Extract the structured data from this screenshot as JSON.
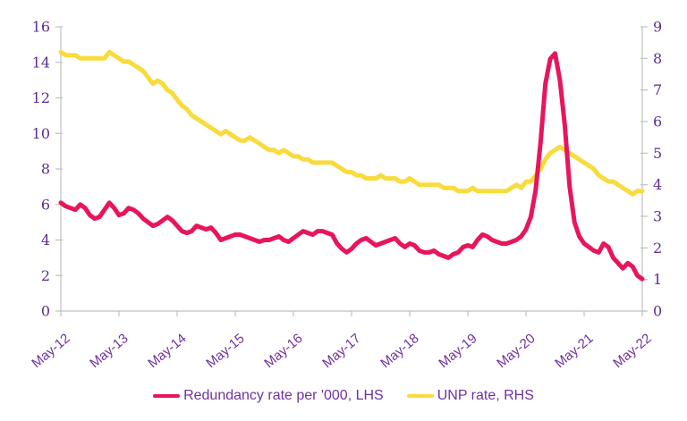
{
  "colors": {
    "redundancy_line": "#E8155E",
    "unp_line": "#F8DB3C",
    "axis_line": "#C0C0C0",
    "tick_number_text": "#5C2D91",
    "month_label_text": "#7030A0"
  },
  "chart_data": {
    "type": "line",
    "title": "",
    "grid": false,
    "legend_position": "bottom",
    "x_unit": "month",
    "x_start": "May-12",
    "x_end": "May-22",
    "n_points": 121,
    "x_tick_labels": [
      "May-12",
      "May-13",
      "May-14",
      "May-15",
      "May-16",
      "May-17",
      "May-18",
      "May-19",
      "May-20",
      "May-21",
      "May-22"
    ],
    "x_tick_interval_months": 12,
    "left_axis": {
      "min": 0,
      "max": 16,
      "tick_step": 2,
      "ticks": [
        0,
        2,
        4,
        6,
        8,
        10,
        12,
        14,
        16
      ]
    },
    "right_axis": {
      "min": 0,
      "max": 9,
      "tick_step": 1,
      "ticks": [
        0,
        1,
        2,
        3,
        4,
        5,
        6,
        7,
        8,
        9
      ]
    },
    "series": [
      {
        "id": "redundancy-rate-line",
        "name": "Redundancy rate per '000, LHS",
        "axis": "left",
        "color": "#E8155E",
        "values": [
          6.1,
          5.9,
          5.8,
          5.7,
          6.0,
          5.8,
          5.4,
          5.2,
          5.3,
          5.7,
          6.1,
          5.8,
          5.4,
          5.5,
          5.8,
          5.7,
          5.5,
          5.2,
          5.0,
          4.8,
          4.9,
          5.1,
          5.3,
          5.1,
          4.8,
          4.5,
          4.4,
          4.5,
          4.8,
          4.7,
          4.6,
          4.7,
          4.4,
          4.0,
          4.1,
          4.2,
          4.3,
          4.3,
          4.2,
          4.1,
          4.0,
          3.9,
          4.0,
          4.0,
          4.1,
          4.2,
          4.0,
          3.9,
          4.1,
          4.3,
          4.5,
          4.4,
          4.3,
          4.5,
          4.5,
          4.4,
          4.3,
          3.8,
          3.5,
          3.3,
          3.5,
          3.8,
          4.0,
          4.1,
          3.9,
          3.7,
          3.8,
          3.9,
          4.0,
          4.1,
          3.8,
          3.6,
          3.8,
          3.7,
          3.4,
          3.3,
          3.3,
          3.4,
          3.2,
          3.1,
          3.0,
          3.2,
          3.3,
          3.6,
          3.7,
          3.6,
          4.0,
          4.3,
          4.2,
          4.0,
          3.9,
          3.8,
          3.8,
          3.9,
          4.0,
          4.2,
          4.6,
          5.3,
          6.8,
          9.5,
          12.8,
          14.2,
          14.5,
          13.0,
          10.5,
          7.0,
          5.0,
          4.2,
          3.8,
          3.6,
          3.4,
          3.3,
          3.8,
          3.6,
          3.0,
          2.7,
          2.4,
          2.7,
          2.5,
          2.0,
          1.8
        ]
      },
      {
        "id": "unp-rate-line",
        "name": "UNP rate, RHS",
        "axis": "right",
        "color": "#F8DB3C",
        "values": [
          8.2,
          8.1,
          8.1,
          8.1,
          8.0,
          8.0,
          8.0,
          8.0,
          8.0,
          8.0,
          8.2,
          8.1,
          8.0,
          7.9,
          7.9,
          7.8,
          7.7,
          7.6,
          7.4,
          7.2,
          7.3,
          7.2,
          7.0,
          6.9,
          6.7,
          6.5,
          6.4,
          6.2,
          6.1,
          6.0,
          5.9,
          5.8,
          5.7,
          5.6,
          5.7,
          5.6,
          5.5,
          5.4,
          5.4,
          5.5,
          5.4,
          5.3,
          5.2,
          5.1,
          5.1,
          5.0,
          5.1,
          5.0,
          4.9,
          4.9,
          4.8,
          4.8,
          4.7,
          4.7,
          4.7,
          4.7,
          4.7,
          4.6,
          4.5,
          4.4,
          4.4,
          4.3,
          4.3,
          4.2,
          4.2,
          4.2,
          4.3,
          4.2,
          4.2,
          4.2,
          4.1,
          4.1,
          4.2,
          4.1,
          4.0,
          4.0,
          4.0,
          4.0,
          4.0,
          3.9,
          3.9,
          3.9,
          3.8,
          3.8,
          3.8,
          3.9,
          3.8,
          3.8,
          3.8,
          3.8,
          3.8,
          3.8,
          3.8,
          3.9,
          4.0,
          3.9,
          4.1,
          4.1,
          4.3,
          4.5,
          4.8,
          5.0,
          5.1,
          5.2,
          5.1,
          5.0,
          4.9,
          4.8,
          4.7,
          4.6,
          4.5,
          4.3,
          4.2,
          4.1,
          4.1,
          4.0,
          3.9,
          3.8,
          3.7,
          3.8,
          3.8
        ]
      }
    ]
  },
  "legend": {
    "items": [
      {
        "label": "Redundancy rate per '000, LHS"
      },
      {
        "label": "UNP rate, RHS"
      }
    ]
  }
}
